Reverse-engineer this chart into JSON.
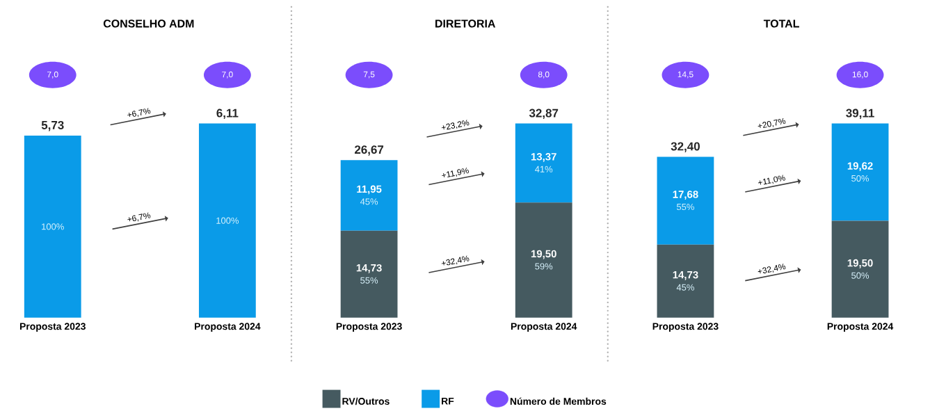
{
  "chart_data": [
    {
      "type": "bar",
      "stacked": true,
      "title": "CONSELHO ADM",
      "categories": [
        "Proposta 2023",
        "Proposta 2024"
      ],
      "tick_labels": "x",
      "series": [
        {
          "color": "#0a9be8",
          "values": [
            5.73,
            6.11
          ],
          "value_labels": [
            "5,73",
            "6,11"
          ]
        }
      ],
      "annotations": [
        "7,0",
        "7,0",
        "+6,7%",
        "+6,7%",
        "100%",
        "100%"
      ]
    },
    {
      "type": "bar",
      "stacked": true,
      "title": "DIRETORIA",
      "categories": [
        "Proposta 2023",
        "Proposta 2024"
      ],
      "tick_labels": "x",
      "legend": "bottom",
      "series": [
        {
          "name": "RV/Outros",
          "color": "#455a60",
          "values": [
            14.73,
            19.5
          ],
          "value_labels": [
            "14,73",
            "19,50"
          ]
        },
        {
          "name": "RF",
          "color": "#0a9be8",
          "values": [
            11.95,
            13.37
          ],
          "value_labels": [
            "11,95",
            "13,37"
          ]
        }
      ],
      "totals": [
        "26,67",
        "32,87"
      ],
      "annotations": [
        "7,5",
        "8,0",
        "+23,2%",
        "+11,9%",
        "+32,4%",
        "55%",
        "59%",
        "45%",
        "41%",
        "Número de Membros"
      ]
    },
    {
      "type": "bar",
      "stacked": true,
      "title": "TOTAL",
      "categories": [
        "Proposta 2023",
        "Proposta 2024"
      ],
      "tick_labels": "x",
      "series": [
        {
          "color": "#455a60",
          "values": [
            14.73,
            19.5
          ],
          "value_labels": [
            "14,73",
            "19,50"
          ]
        },
        {
          "color": "#0a9be8",
          "values": [
            17.68,
            19.62
          ],
          "value_labels": [
            "17,68",
            "19,62"
          ]
        }
      ],
      "totals": [
        "32,40",
        "39,11"
      ],
      "annotations": [
        "14,5",
        "16,0",
        "+20,7%",
        "+11,0%",
        "+32,4%",
        "45%",
        "50%",
        "55%",
        "50%"
      ]
    }
  ]
}
